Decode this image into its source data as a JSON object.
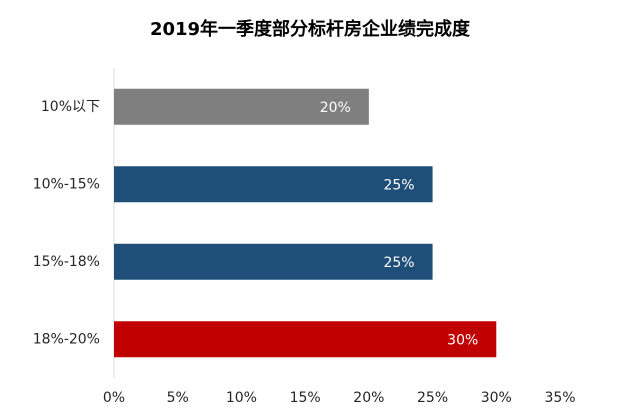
{
  "chart_data": {
    "type": "bar",
    "orientation": "horizontal",
    "title": "2019年一季度部分标杆房企业绩完成度",
    "categories": [
      "10%以下",
      "10%-15%",
      "15%-18%",
      "18%-20%"
    ],
    "values": [
      20,
      25,
      25,
      30
    ],
    "value_labels": [
      "20%",
      "25%",
      "25%",
      "30%"
    ],
    "colors": [
      "#7f7f7f",
      "#1f4e79",
      "#1f4e79",
      "#c00000"
    ],
    "xlim": [
      0,
      35
    ],
    "xticks": [
      {
        "value": 0,
        "label": "0%"
      },
      {
        "value": 5,
        "label": "5%"
      },
      {
        "value": 10,
        "label": "10%"
      },
      {
        "value": 15,
        "label": "15%"
      },
      {
        "value": 20,
        "label": "20%"
      },
      {
        "value": 25,
        "label": "25%"
      },
      {
        "value": 30,
        "label": "30%"
      },
      {
        "value": 35,
        "label": "35%"
      }
    ],
    "grid": false
  }
}
